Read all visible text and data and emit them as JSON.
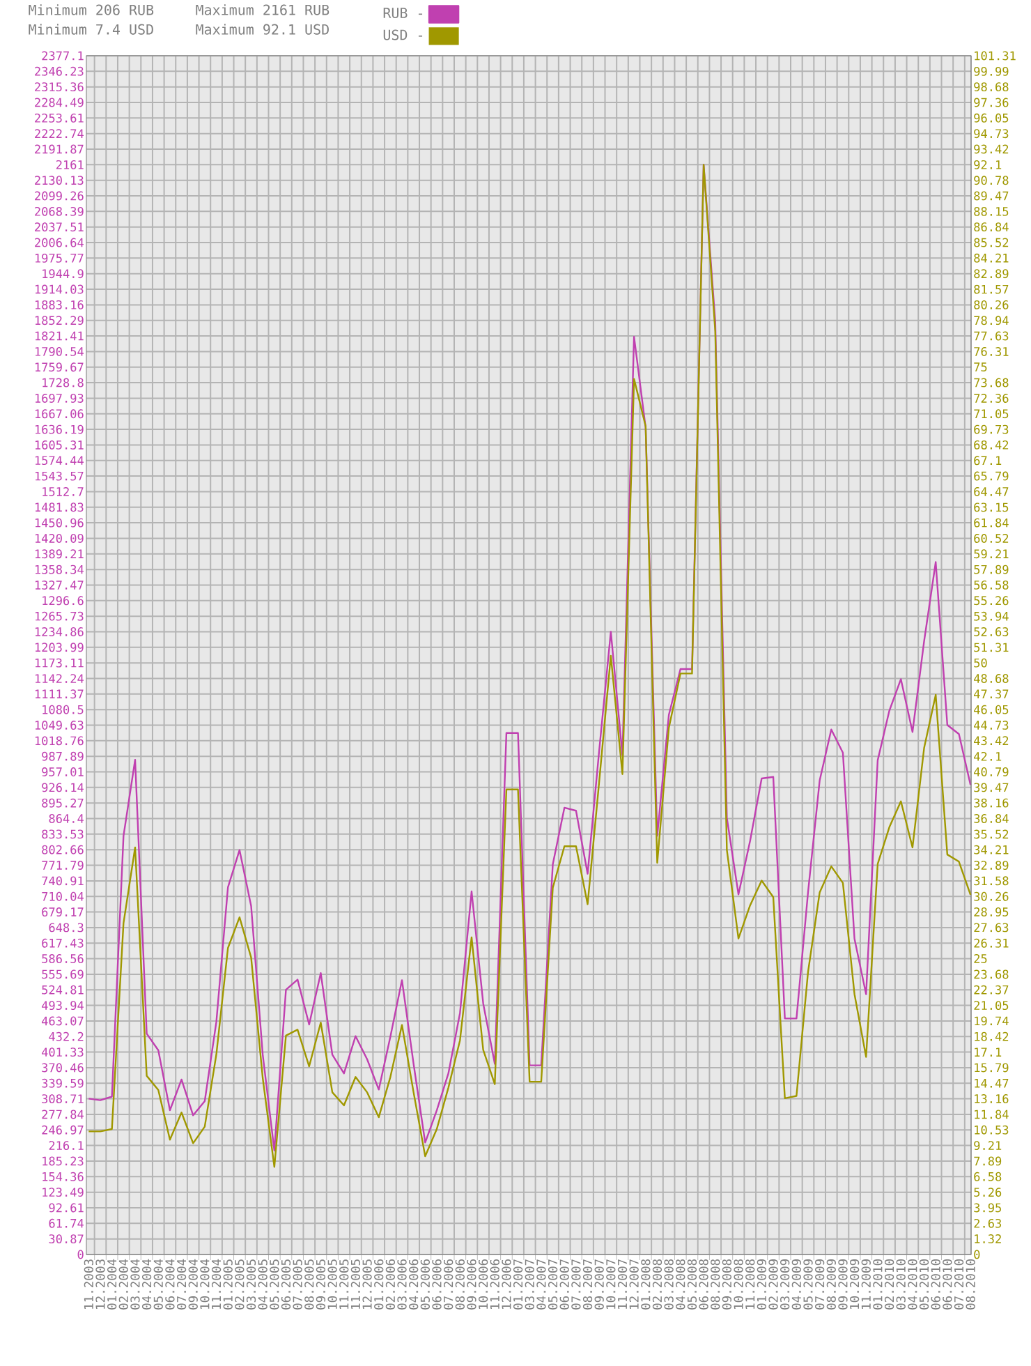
{
  "chart_data": {
    "type": "line",
    "annotations": [
      "Minimum 206 RUB",
      "Minimum 7.4 USD",
      "Maximum 2161 RUB",
      "Maximum 92.1 USD"
    ],
    "categories": [
      "11.2003",
      "12.2003",
      "01.2004",
      "02.2004",
      "03.2004",
      "04.2004",
      "05.2004",
      "06.2004",
      "07.2004",
      "09.2004",
      "10.2004",
      "11.2004",
      "01.2005",
      "02.2005",
      "03.2005",
      "04.2005",
      "05.2005",
      "06.2005",
      "07.2005",
      "08.2005",
      "09.2005",
      "10.2005",
      "11.2005",
      "11.2005",
      "12.2005",
      "01.2006",
      "02.2006",
      "03.2006",
      "04.2006",
      "05.2006",
      "06.2006",
      "07.2006",
      "08.2006",
      "09.2006",
      "10.2006",
      "11.2006",
      "12.2006",
      "01.2007",
      "03.2007",
      "04.2007",
      "05.2007",
      "06.2007",
      "07.2007",
      "08.2007",
      "09.2007",
      "10.2007",
      "11.2007",
      "12.2007",
      "01.2008",
      "02.2008",
      "03.2008",
      "04.2008",
      "05.2008",
      "06.2008",
      "08.2008",
      "09.2008",
      "10.2008",
      "11.2008",
      "01.2009",
      "02.2009",
      "03.2009",
      "04.2009",
      "05.2009",
      "07.2009",
      "08.2009",
      "09.2009",
      "10.2009",
      "11.2009",
      "01.2010",
      "02.2010",
      "03.2010",
      "04.2010",
      "05.2010",
      "06.2010",
      "06.2010",
      "07.2010",
      "08.2010"
    ],
    "series": [
      {
        "name": "RUB -",
        "color": "#c040b0",
        "values": [
          309,
          306,
          313,
          830,
          981,
          438,
          405,
          286,
          347,
          276,
          304,
          461,
          728,
          802,
          691,
          396,
          206,
          525,
          545,
          456,
          558,
          396,
          359,
          433,
          387,
          327,
          432,
          544,
          378,
          222,
          286,
          359,
          479,
          720,
          498,
          378,
          1034,
          1034,
          375,
          375,
          774,
          886,
          880,
          755,
          1000,
          1235,
          990,
          1820,
          1640,
          830,
          1070,
          1161,
          1161,
          2161,
          1850,
          866,
          714,
          820,
          944,
          947,
          468,
          468,
          719,
          940,
          1041,
          995,
          626,
          516,
          980,
          1078,
          1141,
          1036,
          1216,
          1373,
          1050,
          1032,
          931
        ]
      },
      {
        "name": "USD -",
        "color": "#a09800",
        "axis": "y2",
        "values": [
          10.4,
          10.4,
          10.6,
          28,
          34.4,
          15.1,
          13.9,
          9.7,
          12.0,
          9.4,
          10.8,
          16.9,
          25.9,
          28.5,
          25.1,
          14.9,
          7.4,
          18.5,
          19.0,
          15.9,
          19.6,
          13.7,
          12.6,
          15.0,
          13.7,
          11.6,
          15.0,
          19.4,
          13.7,
          8.3,
          10.6,
          14.1,
          18.1,
          26.8,
          17.3,
          14.4,
          39.3,
          39.3,
          14.6,
          14.6,
          31.0,
          34.5,
          34.5,
          29.6,
          40.0,
          50.6,
          40.6,
          74,
          70,
          33.1,
          44.5,
          49.1,
          49.1,
          92.1,
          78,
          34.2,
          26.7,
          29.5,
          31.6,
          30.2,
          13.2,
          13.4,
          23.9,
          30.6,
          32.8,
          31.4,
          22.0,
          16.7,
          33,
          36.1,
          38.3,
          34.4,
          42.8,
          47.3,
          33.8,
          33.2,
          30.4
        ]
      }
    ],
    "ylim": [
      0,
      2377.1
    ],
    "yticks": [
      0,
      30.87,
      61.74,
      92.61,
      123.49,
      154.36,
      185.23,
      216.1,
      246.97,
      277.84,
      308.71,
      339.59,
      370.46,
      401.33,
      432.2,
      463.07,
      493.94,
      524.81,
      555.69,
      586.56,
      617.43,
      648.3,
      679.17,
      710.04,
      740.91,
      771.79,
      802.66,
      833.53,
      864.4,
      895.27,
      926.14,
      957.01,
      987.89,
      1018.76,
      1049.63,
      1080.5,
      1111.37,
      1142.24,
      1173.11,
      1203.99,
      1234.86,
      1265.73,
      1296.6,
      1327.47,
      1358.34,
      1389.21,
      1420.09,
      1450.96,
      1481.83,
      1512.7,
      1543.57,
      1574.44,
      1605.31,
      1636.19,
      1667.06,
      1697.93,
      1728.8,
      1759.67,
      1790.54,
      1821.41,
      1852.29,
      1883.16,
      1914.03,
      1944.9,
      1975.77,
      2006.64,
      2037.51,
      2068.39,
      2099.26,
      2130.13,
      2161,
      2191.87,
      2222.74,
      2253.61,
      2284.49,
      2315.36,
      2346.23,
      2377.1
    ],
    "y2lim": [
      0,
      101.31
    ],
    "y2ticks": [
      0,
      1.32,
      2.63,
      3.95,
      5.26,
      6.58,
      7.89,
      9.21,
      10.53,
      11.84,
      13.16,
      14.47,
      15.79,
      17.1,
      18.42,
      19.74,
      21.05,
      22.37,
      23.68,
      25,
      26.31,
      27.63,
      28.95,
      30.26,
      31.58,
      32.89,
      34.21,
      35.52,
      36.84,
      38.16,
      39.47,
      40.79,
      42.1,
      43.42,
      44.73,
      46.05,
      47.37,
      48.68,
      50,
      51.31,
      52.63,
      53.94,
      55.26,
      56.58,
      57.89,
      59.21,
      60.52,
      61.84,
      63.15,
      64.47,
      65.79,
      67.1,
      68.42,
      69.73,
      71.05,
      72.36,
      73.68,
      75,
      76.31,
      77.63,
      78.94,
      80.26,
      81.57,
      82.89,
      84.21,
      85.52,
      86.84,
      88.15,
      89.47,
      90.78,
      92.1,
      93.42,
      94.73,
      96.05,
      97.36,
      98.68,
      99.99,
      101.31
    ],
    "grid": true,
    "legend": "top"
  }
}
